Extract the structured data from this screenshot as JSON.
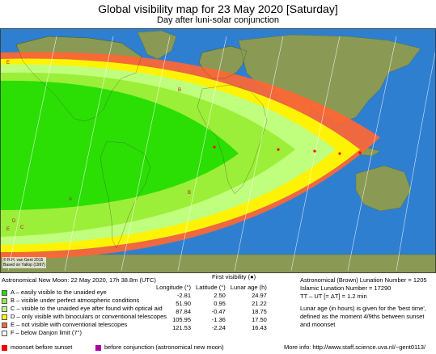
{
  "title": "Global visibility map for 23 May 2020 [Saturday]",
  "subtitle": "Day after luni-solar conjunction",
  "copyright": [
    "© R.H. van Gent 2015",
    "Based on Yallop (1997)"
  ],
  "zone_letters": [
    "A",
    "B",
    "C",
    "D",
    "E"
  ],
  "colors": {
    "A": "#22dd00",
    "B": "#99ee33",
    "C": "#bbff88",
    "D": "#ffff00",
    "E": "#ff6633",
    "F": "#ffffff",
    "moonset_before_sunset": "#ee0000",
    "before_conjunction": "#aa00aa"
  },
  "new_moon": "Astronomical New Moon: 22 May 2020, 17h 38.8m (UTC)",
  "legend": [
    {
      "code": "A",
      "text": "A – easily visible to the unaided eye"
    },
    {
      "code": "B",
      "text": "B – visible under perfect atmospheric conditions"
    },
    {
      "code": "C",
      "text": "C – visible to the unaided eye after found with optical aid"
    },
    {
      "code": "D",
      "text": "D – only visible with binoculars or conventional telescopes"
    },
    {
      "code": "E",
      "text": "E – not visible with conventional telescopes"
    },
    {
      "code": "F",
      "text": "F – below Danjon limit (7°)"
    }
  ],
  "first_visibility": {
    "header": "First visibility (●)",
    "columns": [
      "Longitude (°)",
      "Latitude (°)",
      "Lunar age (h)"
    ],
    "rows": [
      [
        "-2.81",
        "2.50",
        "24.97"
      ],
      [
        "51.90",
        "0.95",
        "21.22"
      ],
      [
        "87.84",
        "-0.47",
        "18.75"
      ],
      [
        "105.95",
        "-1.36",
        "17.50"
      ],
      [
        "121.53",
        "-2.24",
        "16.43"
      ]
    ]
  },
  "lunation": {
    "brown": "Astronomical (Brown) Lunation Number = 1205",
    "islamic": "Islamic Lunation Number = 17290",
    "delta_t": "TT – UT [= ΔT] = 1.2 min",
    "note": [
      "Lunar age (in hours) is given for the 'best time',",
      "defined as the moment 4/9ths between sunset",
      "and moonset"
    ]
  },
  "footer": {
    "moonset": "moonset before sunset",
    "conjunction": "before conjunction (astronomical new moon)",
    "more_info": "More info: http://www.staff.science.uva.nl/~gent0113/"
  }
}
